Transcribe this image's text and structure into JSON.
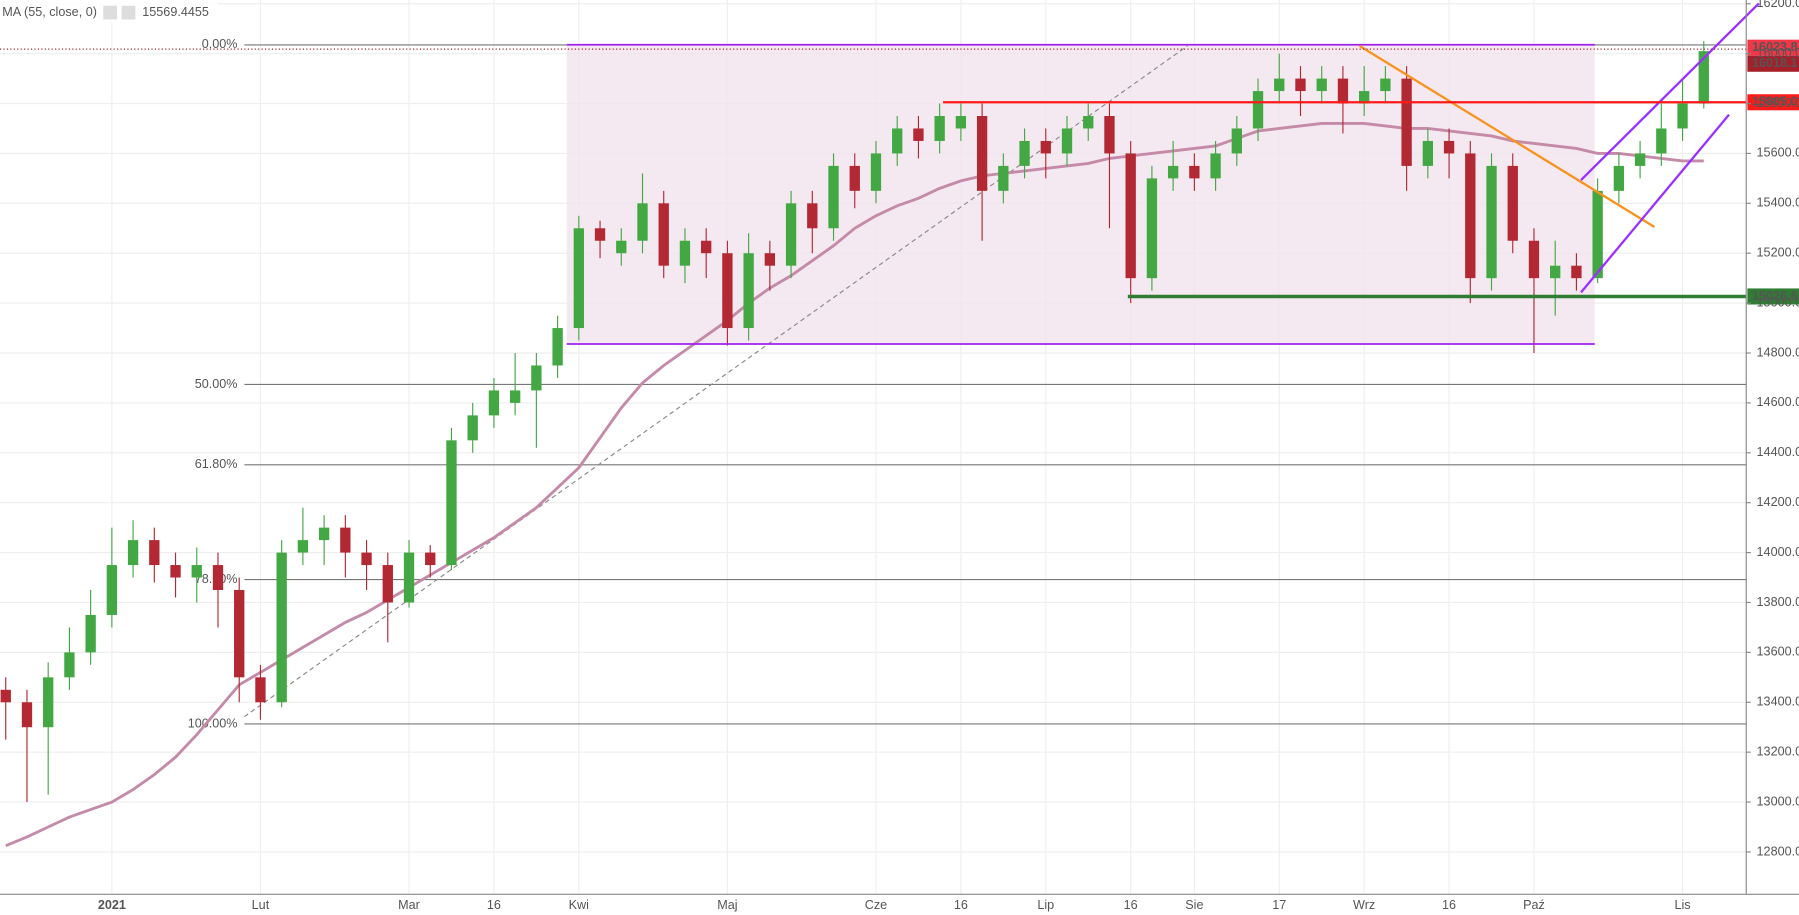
{
  "chart_data": {
    "type": "candlestick",
    "indicator": {
      "name": "MA (55, close, 0)",
      "value": 15569.4455,
      "color": "#c48aa8",
      "values": [
        12825,
        12860,
        12900,
        12940,
        12970,
        13000,
        13050,
        13110,
        13180,
        13270,
        13370,
        13470,
        13520,
        13570,
        13620,
        13670,
        13720,
        13760,
        13810,
        13860,
        13910,
        13960,
        14010,
        14060,
        14120,
        14180,
        14260,
        14340,
        14460,
        14580,
        14680,
        14750,
        14810,
        14870,
        14930,
        15000,
        15060,
        15110,
        15170,
        15230,
        15300,
        15350,
        15390,
        15420,
        15460,
        15490,
        15510,
        15520,
        15530,
        15540,
        15550,
        15560,
        15580,
        15590,
        15600,
        15610,
        15620,
        15630,
        15660,
        15690,
        15700,
        15710,
        15720,
        15720,
        15720,
        15710,
        15700,
        15700,
        15690,
        15680,
        15670,
        15650,
        15640,
        15630,
        15620,
        15600,
        15600,
        15590,
        15580,
        15570,
        15570
      ]
    },
    "categories": [
      null,
      null,
      null,
      null,
      null,
      "2021",
      null,
      null,
      null,
      null,
      null,
      null,
      "Lut",
      null,
      null,
      null,
      null,
      null,
      null,
      "Mar",
      null,
      null,
      null,
      "16",
      null,
      null,
      null,
      "Kwi",
      null,
      null,
      null,
      null,
      null,
      null,
      "Maj",
      null,
      null,
      null,
      null,
      null,
      null,
      "Cze",
      null,
      null,
      null,
      "16",
      null,
      null,
      null,
      "Lip",
      null,
      null,
      null,
      "16",
      null,
      null,
      "Sie",
      null,
      null,
      null,
      "17",
      null,
      null,
      null,
      "Wrz",
      null,
      null,
      null,
      "16",
      null,
      null,
      null,
      "Paź",
      null,
      null,
      null,
      null,
      null,
      null,
      "Lis",
      null
    ],
    "candles": {
      "up_color": "#43a843",
      "down_color": "#b22833",
      "open": [
        13450,
        13400,
        13300,
        13500,
        13600,
        13750,
        13950,
        14050,
        13950,
        13900,
        13950,
        13850,
        13500,
        13400,
        14000,
        14050,
        14100,
        14000,
        13950,
        13800,
        14000,
        13950,
        14450,
        14550,
        14600,
        14650,
        14750,
        14900,
        15300,
        15200,
        15250,
        15400,
        15150,
        15250,
        15200,
        14900,
        15200,
        15150,
        15400,
        15300,
        15550,
        15450,
        15600,
        15700,
        15650,
        15700,
        15750,
        15450,
        15550,
        15650,
        15600,
        15700,
        15750,
        15600,
        15100,
        15500,
        15550,
        15500,
        15600,
        15700,
        15850,
        15900,
        15850,
        15900,
        15800,
        15850,
        15900,
        15550,
        15650,
        15600,
        15100,
        15550,
        15250,
        15100,
        15150,
        15100,
        15450,
        15550,
        15600,
        15700,
        15800
      ],
      "high": [
        13500,
        13450,
        13560,
        13700,
        13850,
        14100,
        14130,
        14100,
        14000,
        14020,
        14000,
        13900,
        13550,
        14050,
        14180,
        14150,
        14150,
        14050,
        14000,
        14050,
        14030,
        14500,
        14600,
        14700,
        14800,
        14800,
        14950,
        15350,
        15330,
        15300,
        15520,
        15450,
        15300,
        15300,
        15250,
        15280,
        15250,
        15450,
        15450,
        15600,
        15600,
        15650,
        15750,
        15750,
        15800,
        15800,
        15800,
        15600,
        15700,
        15700,
        15750,
        15800,
        15800,
        15650,
        15550,
        15650,
        15600,
        15650,
        15750,
        15900,
        16000,
        15950,
        15950,
        15950,
        15950,
        15950,
        15950,
        15700,
        15700,
        15650,
        15600,
        15600,
        15300,
        15250,
        15200,
        15500,
        15600,
        15650,
        15800,
        15900,
        16050
      ],
      "low": [
        13250,
        13000,
        13030,
        13450,
        13550,
        13700,
        13900,
        13880,
        13820,
        13800,
        13700,
        13400,
        13330,
        13380,
        13950,
        13950,
        13900,
        13850,
        13640,
        13780,
        13900,
        13930,
        14400,
        14500,
        14550,
        14420,
        14700,
        14850,
        15180,
        15150,
        15200,
        15100,
        15080,
        15100,
        14830,
        14850,
        15050,
        15100,
        15200,
        15250,
        15380,
        15400,
        15550,
        15580,
        15600,
        15650,
        15250,
        15400,
        15500,
        15500,
        15550,
        15650,
        15300,
        15000,
        15050,
        15450,
        15450,
        15450,
        15550,
        15650,
        15800,
        15750,
        15800,
        15680,
        15750,
        15800,
        15450,
        15500,
        15500,
        15000,
        15050,
        15200,
        14800,
        14950,
        15050,
        15080,
        15400,
        15500,
        15550,
        15650,
        15780
      ],
      "close": [
        13400,
        13300,
        13500,
        13600,
        13750,
        13950,
        14050,
        13950,
        13900,
        13950,
        13850,
        13500,
        13400,
        14000,
        14050,
        14100,
        14000,
        13950,
        13800,
        14000,
        13950,
        14450,
        14550,
        14650,
        14650,
        14750,
        14900,
        15300,
        15250,
        15250,
        15400,
        15150,
        15250,
        15200,
        14900,
        15200,
        15150,
        15400,
        15300,
        15550,
        15450,
        15600,
        15700,
        15650,
        15750,
        15750,
        15450,
        15550,
        15650,
        15600,
        15700,
        15750,
        15600,
        15100,
        15500,
        15550,
        15500,
        15600,
        15700,
        15850,
        15900,
        15850,
        15900,
        15800,
        15850,
        15900,
        15550,
        15650,
        15600,
        15100,
        15550,
        15250,
        15100,
        15150,
        15100,
        15450,
        15550,
        15600,
        15700,
        15800,
        16010
      ]
    },
    "ylim": [
      12630,
      16215
    ],
    "yticks": [
      {
        "value": 12800,
        "label": "12800.0"
      },
      {
        "value": 13000,
        "label": "13000.0"
      },
      {
        "value": 13200,
        "label": "13200.0"
      },
      {
        "value": 13400,
        "label": "13400.0"
      },
      {
        "value": 13600,
        "label": "13600.0"
      },
      {
        "value": 13800,
        "label": "13800.0"
      },
      {
        "value": 14000,
        "label": "14000.0"
      },
      {
        "value": 14200,
        "label": "14200.0"
      },
      {
        "value": 14400,
        "label": "14400.0"
      },
      {
        "value": 14600,
        "label": "14600.0"
      },
      {
        "value": 14800,
        "label": "14800.0"
      },
      {
        "value": 15000,
        "label": "15000.0"
      },
      {
        "value": 15200,
        "label": "15200.0"
      },
      {
        "value": 15400,
        "label": "15400.0"
      },
      {
        "value": 15600,
        "label": "15600.0"
      },
      {
        "value": 15800,
        "label": "15800.0"
      },
      {
        "value": 16000,
        "label": "16000.0"
      },
      {
        "value": 16200,
        "label": "16200.0"
      }
    ],
    "grid": true,
    "fib_levels": [
      {
        "value": 0,
        "label": "0.00%",
        "price": 16035
      },
      {
        "value": 50,
        "label": "50.00%",
        "price": 14674
      },
      {
        "value": 61.8,
        "label": "61.80%",
        "price": 14352
      },
      {
        "value": 78.6,
        "label": "78.60%",
        "price": 13892
      },
      {
        "value": 100,
        "label": "100.00%",
        "price": 13313
      }
    ],
    "price_labels": [
      {
        "value": 16023.8,
        "color": "#f23645"
      },
      {
        "value": 16018.1,
        "color": "#a51f28"
      },
      {
        "value": 15805,
        "label": "15805.0",
        "color": "#ff1a1a"
      },
      {
        "value": 15026.6,
        "color": "#2e7d32"
      }
    ]
  }
}
